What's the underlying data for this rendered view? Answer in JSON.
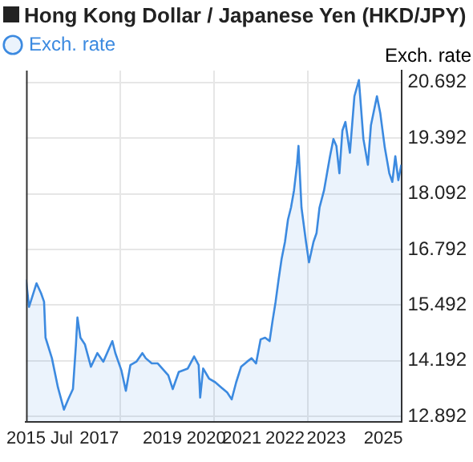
{
  "chart_data": {
    "type": "area",
    "title": "Hong Kong Dollar / Japanese Yen (HKD/JPY)",
    "ylabel": "Exch. rate",
    "legend": "top left",
    "grid": true,
    "marker": "none",
    "xlim": [
      2015.5,
      2025.5
    ],
    "xticks": [
      {
        "value": 2015.5,
        "label": "2015"
      },
      {
        "value": 2016.45,
        "label": "Jul"
      },
      {
        "value": 2017.45,
        "label": "2017"
      },
      {
        "value": 2018.0,
        "label": null
      },
      {
        "value": 2019.13,
        "label": "2019"
      },
      {
        "value": 2020.3,
        "label": "2020"
      },
      {
        "value": 2020.5,
        "label": null
      },
      {
        "value": 2021.25,
        "label": "2021"
      },
      {
        "value": 2022.4,
        "label": "2022"
      },
      {
        "value": 2023.0,
        "label": null
      },
      {
        "value": 2023.5,
        "label": "2023"
      },
      {
        "value": 2025.02,
        "label": "2025"
      }
    ],
    "ylim": [
      12.77,
      20.97
    ],
    "yticks": [
      12.892,
      14.192,
      15.492,
      16.792,
      18.092,
      19.392,
      20.692
    ],
    "series": [
      {
        "name": "Exch. rate",
        "color": "#3c8ae0",
        "x": [
          2015.5,
          2015.58,
          2015.78,
          2015.9,
          2015.98,
          2016.02,
          2016.19,
          2016.35,
          2016.51,
          2016.63,
          2016.75,
          2016.83,
          2016.87,
          2016.95,
          2017.07,
          2017.23,
          2017.4,
          2017.56,
          2017.72,
          2017.8,
          2017.88,
          2018.04,
          2018.16,
          2018.28,
          2018.44,
          2018.6,
          2018.69,
          2018.85,
          2019.01,
          2019.29,
          2019.41,
          2019.57,
          2019.81,
          2019.98,
          2020.1,
          2020.14,
          2020.22,
          2020.38,
          2020.54,
          2020.7,
          2020.86,
          2020.98,
          2021.1,
          2021.23,
          2021.39,
          2021.51,
          2021.63,
          2021.75,
          2021.87,
          2021.99,
          2022.07,
          2022.15,
          2022.23,
          2022.31,
          2022.4,
          2022.48,
          2022.56,
          2022.64,
          2022.72,
          2022.76,
          2022.84,
          2022.96,
          2023.04,
          2023.16,
          2023.24,
          2023.32,
          2023.44,
          2023.52,
          2023.6,
          2023.69,
          2023.77,
          2023.85,
          2023.93,
          2024.01,
          2024.13,
          2024.25,
          2024.37,
          2024.49,
          2024.61,
          2024.69,
          2024.85,
          2024.94,
          2025.06,
          2025.18,
          2025.26,
          2025.34,
          2025.42,
          2025.5
        ],
        "values": [
          16.09,
          15.45,
          16.0,
          15.77,
          15.57,
          14.73,
          14.25,
          13.57,
          13.05,
          13.3,
          13.53,
          14.57,
          15.2,
          14.73,
          14.57,
          14.05,
          14.37,
          14.17,
          14.49,
          14.65,
          14.37,
          13.97,
          13.49,
          14.09,
          14.17,
          14.37,
          14.25,
          14.13,
          14.13,
          13.85,
          13.53,
          13.93,
          14.01,
          14.29,
          14.09,
          13.33,
          14.01,
          13.77,
          13.69,
          13.57,
          13.45,
          13.29,
          13.69,
          14.05,
          14.17,
          14.25,
          14.13,
          14.69,
          14.73,
          14.65,
          15.13,
          15.57,
          16.09,
          16.57,
          16.97,
          17.49,
          17.77,
          18.17,
          18.77,
          19.21,
          17.77,
          16.97,
          16.49,
          16.97,
          17.17,
          17.77,
          18.17,
          18.57,
          18.97,
          19.37,
          19.21,
          18.57,
          19.57,
          19.77,
          19.05,
          20.37,
          20.75,
          19.37,
          18.77,
          19.69,
          20.37,
          19.97,
          19.17,
          18.57,
          18.37,
          18.97,
          18.41,
          18.77
        ]
      }
    ]
  }
}
